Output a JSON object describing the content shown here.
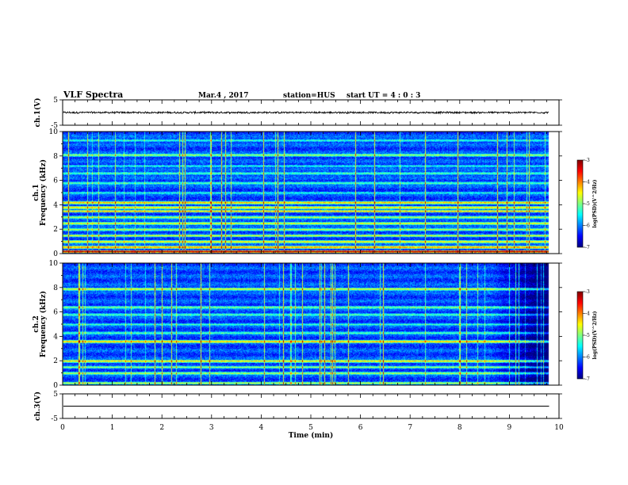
{
  "header": {
    "title": "VLF Spectra",
    "date": "Mar.4 , 2017",
    "station": "station=HUS",
    "start": "start UT = 4 : 0 : 3"
  },
  "chart_data": [
    {
      "type": "line",
      "panel": "ch1-waveform",
      "ylabel": "ch.1(V)",
      "ylim": [
        -5,
        5
      ],
      "yticks": [
        "5",
        "-5"
      ],
      "xlim": [
        0,
        10
      ],
      "trace": {
        "center": 0,
        "amplitude": 0.4,
        "end": 9.8
      }
    },
    {
      "type": "heatmap",
      "panel": "ch1-spectrogram",
      "ylabel_line1": "ch.1",
      "ylabel_line2": "Frequency (kHz)",
      "ylim": [
        0,
        10
      ],
      "yticks": [
        "0",
        "2",
        "4",
        "6",
        "8",
        "10"
      ],
      "xlim": [
        0,
        10
      ],
      "data_end": 9.8,
      "colorbar": {
        "label": "log(PSD)(V^2/Hz)",
        "ticks": [
          "-3",
          "-4",
          "-5",
          "-6",
          "-7"
        ]
      },
      "bands": [
        {
          "f": 0.2,
          "level": 1.0
        },
        {
          "f": 0.55,
          "level": 0.8
        },
        {
          "f": 1.0,
          "level": 0.7
        },
        {
          "f": 1.5,
          "level": 0.62
        },
        {
          "f": 2.0,
          "level": 0.6
        },
        {
          "f": 2.5,
          "level": 0.66
        },
        {
          "f": 3.0,
          "level": 0.6
        },
        {
          "f": 3.5,
          "level": 0.7
        },
        {
          "f": 3.8,
          "level": 0.72
        },
        {
          "f": 4.2,
          "level": 0.75
        },
        {
          "f": 5.0,
          "level": 0.42
        },
        {
          "f": 5.8,
          "level": 0.5
        },
        {
          "f": 6.6,
          "level": 0.5
        },
        {
          "f": 7.2,
          "level": 0.42
        },
        {
          "f": 8.1,
          "level": 0.58
        },
        {
          "f": 9.3,
          "level": 0.45
        }
      ]
    },
    {
      "type": "heatmap",
      "panel": "ch2-spectrogram",
      "ylabel_line1": "ch.2",
      "ylabel_line2": "Frequency (kHz)",
      "ylim": [
        0,
        10
      ],
      "yticks": [
        "0",
        "2",
        "4",
        "6",
        "8",
        "10"
      ],
      "xlim": [
        0,
        10
      ],
      "data_end": 9.8,
      "colorbar": {
        "label": "log(PSD)(V^2/Hz)",
        "ticks": [
          "-3",
          "-4",
          "-5",
          "-6",
          "-7"
        ]
      },
      "bands": [
        {
          "f": 0.2,
          "level": 0.6
        },
        {
          "f": 1.0,
          "level": 0.6
        },
        {
          "f": 1.5,
          "level": 0.55
        },
        {
          "f": 2.0,
          "level": 0.7
        },
        {
          "f": 3.6,
          "level": 0.75
        },
        {
          "f": 4.3,
          "level": 0.5
        },
        {
          "f": 5.0,
          "level": 0.45
        },
        {
          "f": 5.8,
          "level": 0.5
        },
        {
          "f": 6.4,
          "level": 0.55
        },
        {
          "f": 7.9,
          "level": 0.65
        }
      ]
    },
    {
      "type": "line",
      "panel": "ch3-waveform",
      "ylabel": "ch.3(V)",
      "ylim": [
        -5,
        5
      ],
      "yticks": [
        "5",
        "-5"
      ],
      "xlim": [
        0,
        10
      ],
      "xlabel": "Time (min)",
      "xticks": [
        "0",
        "1",
        "2",
        "3",
        "4",
        "5",
        "6",
        "7",
        "8",
        "9",
        "10"
      ],
      "trace": {
        "center": 0,
        "amplitude": 0,
        "end": 9.8
      }
    }
  ]
}
